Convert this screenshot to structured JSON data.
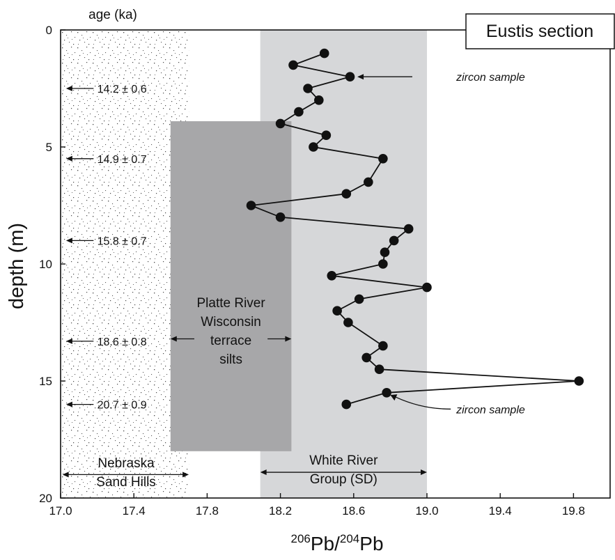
{
  "chart_data": {
    "type": "line",
    "title": "Eustis section",
    "xlabel": {
      "prefix_sup": "206",
      "base1": "Pb/",
      "mid_sup": "204",
      "base2": "Pb"
    },
    "ylabel": "depth (m)",
    "top_label": "age (ka)",
    "xlim": [
      17.0,
      20.0
    ],
    "ylim": [
      0,
      20
    ],
    "y_inverted": true,
    "x_ticks": [
      "17.0",
      "17.4",
      "17.8",
      "18.2",
      "18.6",
      "19.0",
      "19.4",
      "19.8"
    ],
    "y_ticks": [
      "0",
      "5",
      "10",
      "15",
      "20"
    ],
    "grid": false,
    "series": [
      {
        "x": [
          18.44,
          18.27,
          18.58,
          18.35,
          18.41,
          18.3,
          18.2,
          18.45,
          18.38,
          18.76,
          18.68,
          18.56,
          18.04,
          18.2,
          18.9,
          18.82,
          18.77,
          18.76,
          18.48,
          19.0,
          18.63,
          18.51,
          18.57,
          18.76,
          18.67,
          18.74,
          19.83,
          18.78,
          18.56
        ],
        "y": [
          1.0,
          1.5,
          2.0,
          2.5,
          3.0,
          3.5,
          4.0,
          4.5,
          5.0,
          5.5,
          6.5,
          7.0,
          7.5,
          8.0,
          8.5,
          9.0,
          9.5,
          10.0,
          10.5,
          11.0,
          11.5,
          12.0,
          12.5,
          13.5,
          14.0,
          14.5,
          15.0,
          15.5,
          16.0
        ]
      }
    ],
    "ages": [
      {
        "depth": 2.5,
        "label": "14.2 ± 0.6"
      },
      {
        "depth": 5.5,
        "label": "14.9 ± 0.7"
      },
      {
        "depth": 9.0,
        "label": "15.8 ± 0.7"
      },
      {
        "depth": 13.3,
        "label": "18.6 ± 0.8"
      },
      {
        "depth": 16.0,
        "label": "20.7 ± 0.9"
      }
    ],
    "regions": [
      {
        "name": "sand",
        "x0": 17.0,
        "x1": 17.7,
        "y0": 0,
        "y1": 20,
        "lines": [
          "Nebraska",
          "Sand Hills"
        ]
      },
      {
        "name": "platte",
        "x0": 17.6,
        "x1": 18.26,
        "y0": 3.9,
        "y1": 18.0,
        "lines": [
          "Platte River",
          "Wisconsin",
          "terrace",
          "silts"
        ],
        "color": "#a7a7a9"
      },
      {
        "name": "white-river",
        "x0": 18.09,
        "x1": 19.0,
        "y0": 0,
        "y1": 20,
        "lines": [
          "White River",
          "Group (SD)"
        ],
        "color": "#d6d7d9"
      }
    ],
    "annotations": [
      {
        "text": "zircon sample",
        "depth": 2.0,
        "x": 18.58
      },
      {
        "text": "zircon sample",
        "depth": 15.6,
        "x": 18.78
      }
    ]
  }
}
